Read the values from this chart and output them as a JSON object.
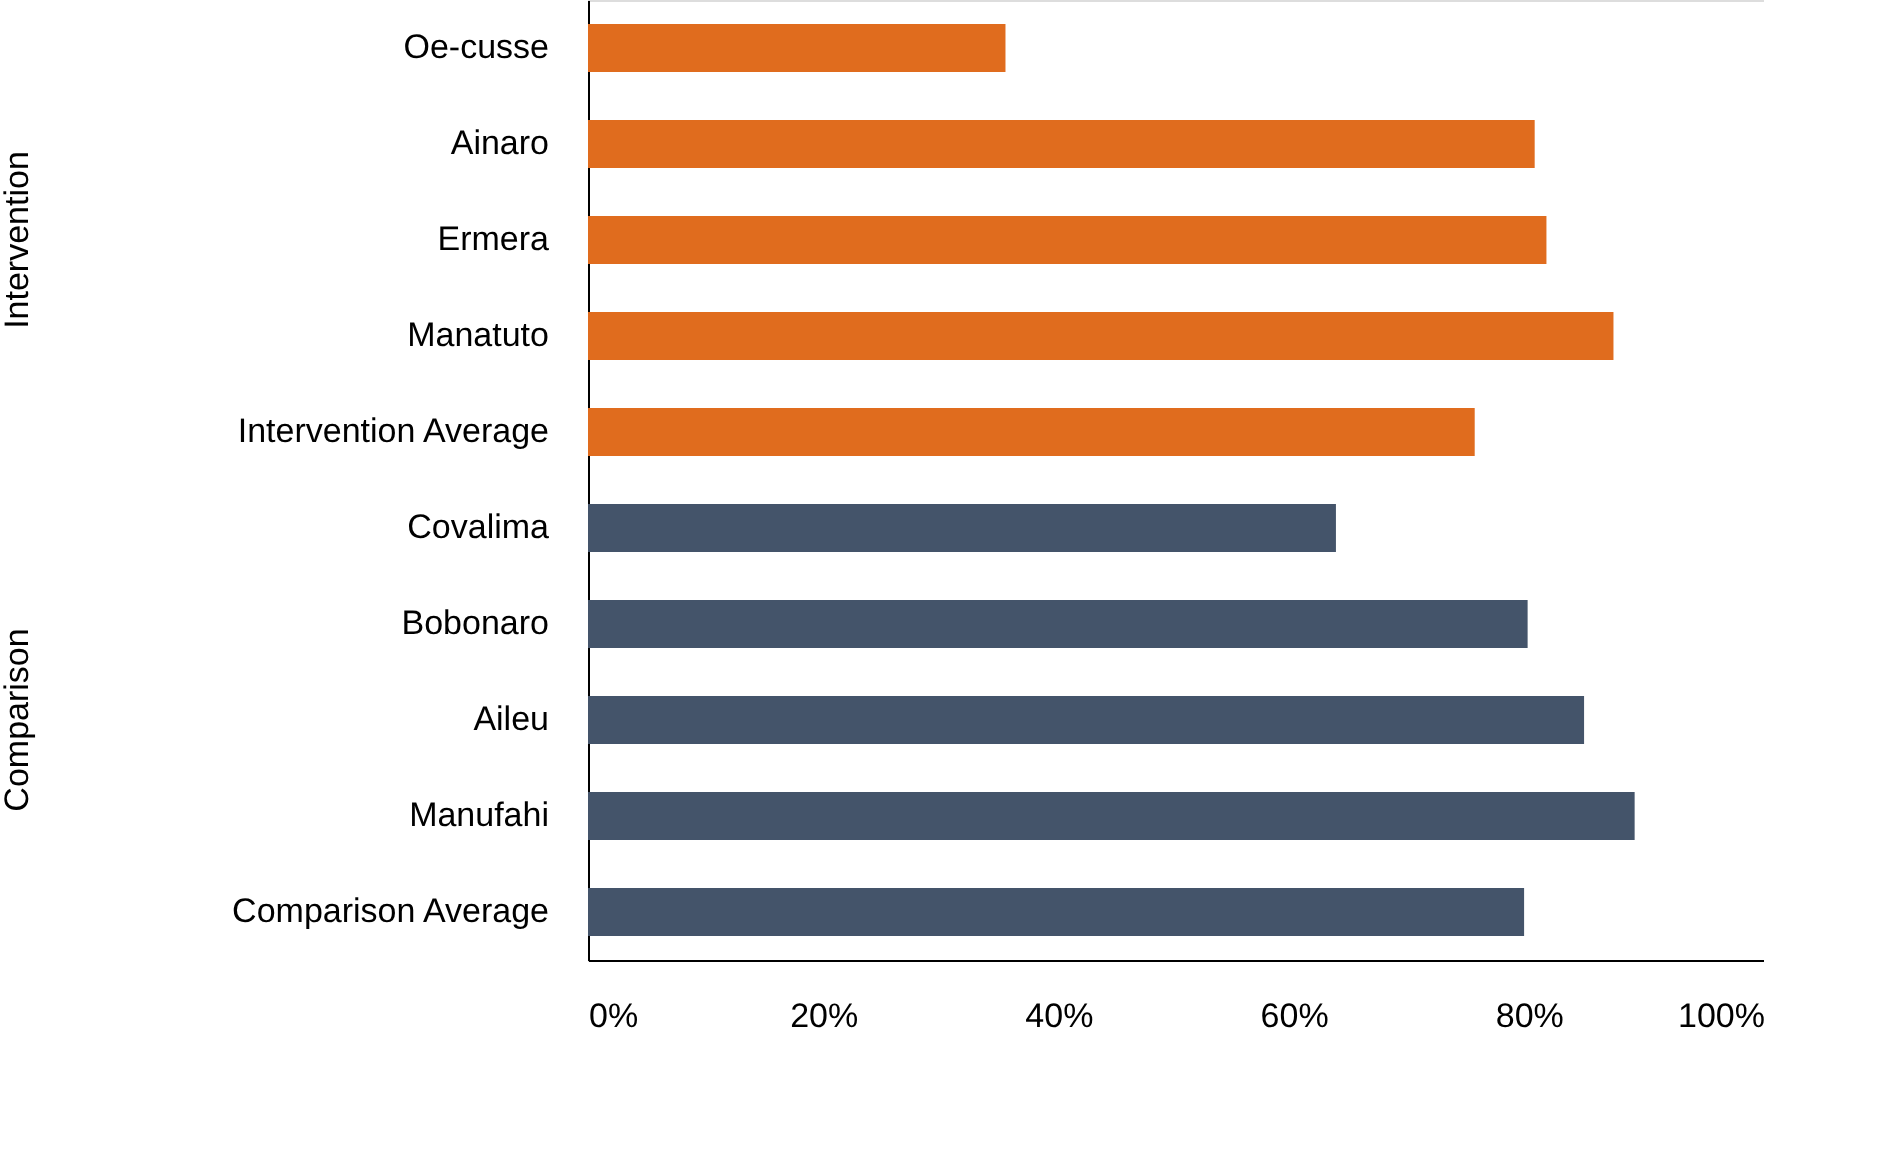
{
  "chart_data": {
    "type": "bar",
    "orientation": "horizontal",
    "categories": [
      "Oe-cusse",
      "Ainaro",
      "Ermera",
      "Manatuto",
      "Intervention Average",
      "Covalima",
      "Bobonaro",
      "Aileu",
      "Manufahi",
      "Comparison Average"
    ],
    "series": [
      {
        "color": "#e06c1e",
        "values": [
          35.5,
          80.5,
          81.5,
          87.2,
          75.4,
          null,
          null,
          null,
          null,
          null
        ]
      },
      {
        "color": "#44546a",
        "values": [
          null,
          null,
          null,
          null,
          null,
          63.6,
          79.9,
          84.7,
          89.0,
          79.6
        ]
      }
    ],
    "annotations": [
      "Intervention",
      "Comparison"
    ],
    "xlim": [
      0,
      100
    ],
    "xticks": [
      {
        "value": 0,
        "label": "0%"
      },
      {
        "value": 20,
        "label": "20%"
      },
      {
        "value": 40,
        "label": "40%"
      },
      {
        "value": 60,
        "label": "60%"
      },
      {
        "value": 80,
        "label": "80%"
      },
      {
        "value": 100,
        "label": "100%"
      }
    ],
    "grid": false
  }
}
